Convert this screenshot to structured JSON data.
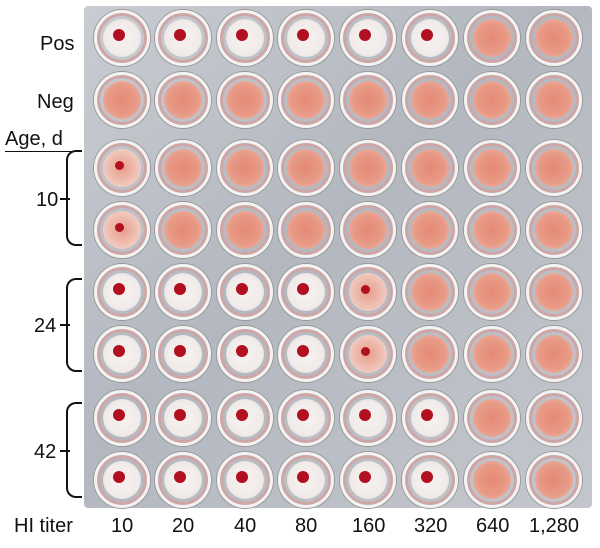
{
  "row_labels": {
    "pos": "Pos",
    "neg": "Neg",
    "age_header": "Age, d"
  },
  "age_groups": [
    "10",
    "24",
    "42"
  ],
  "x_axis": {
    "label": "HI titer",
    "values": [
      "10",
      "20",
      "40",
      "80",
      "160",
      "320",
      "640",
      "1,280"
    ]
  },
  "colors": {
    "button_red": "#b01020",
    "lawn_pink": "#e79a86",
    "clear_well": "#f1ecea",
    "plate_grey": "#bcc0c7"
  },
  "wells": [
    [
      "button",
      "button",
      "button",
      "button",
      "button",
      "button",
      "lawn",
      "lawn"
    ],
    [
      "lawn",
      "lawn",
      "lawn",
      "lawn",
      "lawn",
      "lawn",
      "lawn",
      "lawn"
    ],
    [
      "partial",
      "lawn",
      "lawn",
      "lawn",
      "lawn",
      "lawn",
      "lawn",
      "lawn"
    ],
    [
      "partial",
      "lawn",
      "lawn",
      "lawn",
      "lawn",
      "lawn",
      "lawn",
      "lawn"
    ],
    [
      "button",
      "button",
      "button",
      "button",
      "partial",
      "lawn",
      "lawn",
      "lawn"
    ],
    [
      "button",
      "button",
      "button",
      "button",
      "partial",
      "lawn",
      "lawn",
      "lawn"
    ],
    [
      "button",
      "button",
      "button",
      "button",
      "button",
      "button",
      "lawn",
      "lawn"
    ],
    [
      "button",
      "button",
      "button",
      "button",
      "button",
      "button",
      "lawn",
      "lawn"
    ]
  ]
}
